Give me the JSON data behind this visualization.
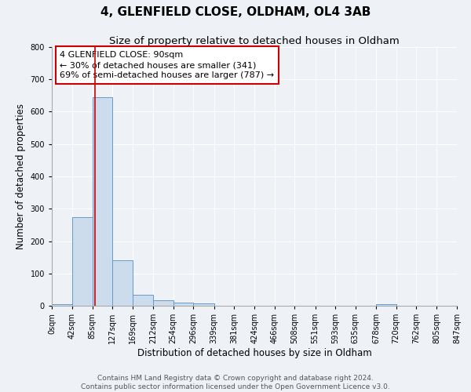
{
  "title": "4, GLENFIELD CLOSE, OLDHAM, OL4 3AB",
  "subtitle": "Size of property relative to detached houses in Oldham",
  "xlabel": "Distribution of detached houses by size in Oldham",
  "ylabel": "Number of detached properties",
  "bins": [
    0,
    42,
    85,
    127,
    169,
    212,
    254,
    296,
    339,
    381,
    424,
    466,
    508,
    551,
    593,
    635,
    678,
    720,
    762,
    805,
    847
  ],
  "counts": [
    5,
    275,
    645,
    140,
    35,
    18,
    10,
    8,
    0,
    0,
    0,
    0,
    0,
    0,
    0,
    0,
    5,
    0,
    0,
    0
  ],
  "bar_color": "#ccdcec",
  "bar_edge_color": "#6699cc",
  "bar_edge_width": 0.7,
  "property_line_x": 90,
  "property_line_color": "#cc0000",
  "ylim": [
    0,
    800
  ],
  "yticks": [
    0,
    100,
    200,
    300,
    400,
    500,
    600,
    700,
    800
  ],
  "xtick_labels": [
    "0sqm",
    "42sqm",
    "85sqm",
    "127sqm",
    "169sqm",
    "212sqm",
    "254sqm",
    "296sqm",
    "339sqm",
    "381sqm",
    "424sqm",
    "466sqm",
    "508sqm",
    "551sqm",
    "593sqm",
    "635sqm",
    "678sqm",
    "720sqm",
    "762sqm",
    "805sqm",
    "847sqm"
  ],
  "annotation_text": "4 GLENFIELD CLOSE: 90sqm\n← 30% of detached houses are smaller (341)\n69% of semi-detached houses are larger (787) →",
  "annotation_box_color": "#ffffff",
  "annotation_box_edge_color": "#cc0000",
  "footer_line1": "Contains HM Land Registry data © Crown copyright and database right 2024.",
  "footer_line2": "Contains public sector information licensed under the Open Government Licence v3.0.",
  "bg_color": "#eef2f7",
  "grid_color": "#ffffff",
  "title_fontsize": 11,
  "subtitle_fontsize": 9.5,
  "axis_label_fontsize": 8.5,
  "tick_fontsize": 7,
  "annotation_fontsize": 8,
  "footer_fontsize": 6.5
}
